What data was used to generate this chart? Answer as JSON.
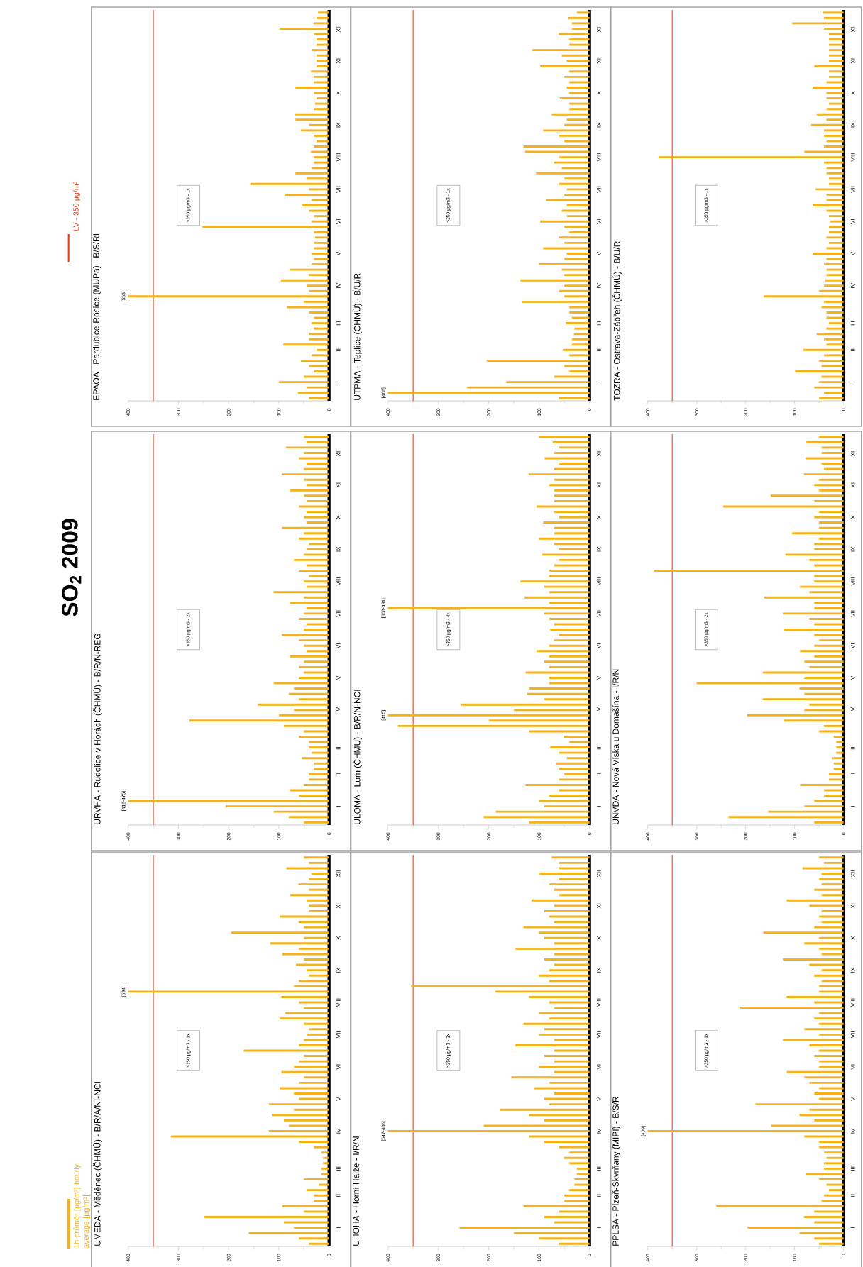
{
  "chart_data": [
    {
      "type": "bar",
      "orientation": "horizontal",
      "title": "UMEDA - Měděnec (ČHMÚ) - B/R/A/NI-NCI",
      "subtitle": "SO$_{2}$   2009",
      "legend": "left",
      "categories": [
        null,
        null,
        null,
        "XII",
        null,
        null,
        null,
        null,
        null,
        "XI",
        null,
        null,
        null,
        null,
        null,
        "X",
        null,
        null,
        null,
        null,
        null,
        "IX",
        null,
        null,
        null,
        null,
        null,
        "VIII",
        null,
        null,
        null,
        null,
        null,
        "VII",
        null,
        null,
        null,
        null,
        null,
        "VI",
        null,
        null,
        null,
        null,
        null,
        "V",
        null,
        null,
        null,
        null,
        null,
        "IV",
        null,
        null,
        null,
        null,
        null,
        null,
        "III",
        null,
        null,
        null,
        null,
        "II",
        null,
        null,
        null,
        null,
        null,
        "I",
        null,
        null,
        null
      ],
      "series": [
        {
          "name": "1h průměr [µg/m³] hourly average [µg/m³]",
          "color": "#f5b21a",
          "values": [
            50,
            40,
            85,
            35,
            40,
            61,
            40,
            77,
            45,
            40,
            40,
            98,
            60,
            50,
            195,
            50,
            117,
            60,
            93,
            50,
            66,
            45,
            40,
            60,
            70,
            400,
            95,
            60,
            50,
            87,
            98,
            50,
            40,
            44,
            50,
            60,
            170,
            50,
            60,
            70,
            95,
            50,
            60,
            98,
            70,
            60,
            120,
            70,
            114,
            90,
            80,
            120,
            315,
            60,
            30,
            15,
            12,
            12,
            15,
            15,
            50,
            20,
            45,
            30,
            30,
            93,
            50,
            248,
            90,
            70,
            160,
            60,
            40
          ]
        }
      ],
      "xlim": [
        400,
        0
      ],
      "xticks": [
        400,
        300,
        200,
        100,
        0
      ],
      "ref_lines": [
        {
          "axis": "x",
          "value": 350,
          "label": "LV - 350 µg/m³",
          "color": "#e8401c"
        }
      ],
      "annotations": [
        ">350 µg/m3 - 1x",
        "[594]"
      ]
    },
    {
      "type": "bar",
      "orientation": "horizontal",
      "title": "URVHA - Rudolice v Horách (ČHMÚ) - B/R/N-REG",
      "categories": [
        null,
        null,
        null,
        "XII",
        null,
        null,
        null,
        null,
        null,
        "XI",
        null,
        null,
        null,
        null,
        null,
        "X",
        null,
        null,
        null,
        null,
        null,
        "IX",
        null,
        null,
        null,
        null,
        null,
        "VIII",
        null,
        null,
        null,
        null,
        null,
        "VII",
        null,
        null,
        null,
        null,
        null,
        "VI",
        null,
        null,
        null,
        null,
        null,
        "V",
        null,
        null,
        null,
        null,
        null,
        "IV",
        null,
        null,
        null,
        null,
        null,
        null,
        "III",
        null,
        null,
        null,
        null,
        "II",
        null,
        null,
        null,
        null,
        null,
        "I",
        null,
        null,
        null
      ],
      "series": [
        {
          "color": "#f5b21a",
          "values": [
            50,
            45,
            86,
            50,
            60,
            45,
            50,
            94,
            50,
            45,
            78,
            50,
            45,
            60,
            45,
            50,
            45,
            94,
            50,
            60,
            40,
            45,
            50,
            70,
            45,
            60,
            40,
            50,
            45,
            110,
            50,
            78,
            45,
            50,
            60,
            45,
            50,
            94,
            60,
            50,
            45,
            78,
            50,
            60,
            50,
            60,
            110,
            70,
            80,
            60,
            142,
            70,
            100,
            278,
            90,
            50,
            60,
            40,
            40,
            35,
            54,
            30,
            30,
            40,
            40,
            50,
            78,
            60,
            400,
            206,
            110,
            80,
            50
          ]
        }
      ],
      "xlim": [
        400,
        0
      ],
      "xticks": [
        400,
        300,
        200,
        100,
        0
      ],
      "ref_lines": [
        {
          "axis": "x",
          "value": 350,
          "color": "#e8401c"
        }
      ],
      "annotations": [
        ">350 µg/m3 - 2x",
        "[418-475]"
      ]
    },
    {
      "type": "bar",
      "orientation": "horizontal",
      "title": "EPAOA - Pardubice-Rosice (MUPa) - B/S/RI",
      "categories": [
        null,
        null,
        null,
        "XII",
        null,
        null,
        null,
        null,
        null,
        "XI",
        null,
        null,
        null,
        null,
        null,
        "X",
        null,
        null,
        null,
        null,
        null,
        "IX",
        null,
        null,
        null,
        null,
        null,
        "VIII",
        null,
        null,
        null,
        null,
        null,
        "VII",
        null,
        null,
        null,
        null,
        null,
        "VI",
        null,
        null,
        null,
        null,
        null,
        "V",
        null,
        null,
        null,
        null,
        null,
        "IV",
        null,
        null,
        null,
        null,
        null,
        null,
        "III",
        null,
        null,
        null,
        null,
        "II",
        null,
        null,
        null,
        null,
        null,
        "I",
        null,
        null,
        null
      ],
      "series": [
        {
          "color": "#f5b21a",
          "values": [
            22,
            25,
            31,
            98,
            30,
            25,
            25,
            34,
            25,
            25,
            25,
            36,
            30,
            30,
            67,
            30,
            25,
            28,
            30,
            68,
            67,
            40,
            56,
            30,
            25,
            30,
            36,
            30,
            30,
            35,
            67,
            45,
            157,
            40,
            87,
            35,
            53,
            40,
            30,
            35,
            252,
            30,
            28,
            30,
            30,
            34,
            30,
            35,
            79,
            40,
            96,
            45,
            40,
            400,
            50,
            84,
            40,
            30,
            35,
            30,
            39,
            40,
            91,
            25,
            35,
            56,
            40,
            30,
            50,
            100,
            45,
            62,
            40
          ]
        }
      ],
      "xlim": [
        400,
        0
      ],
      "xticks": [
        400,
        300,
        200,
        100,
        0
      ],
      "ref_lines": [
        {
          "axis": "x",
          "value": 350,
          "color": "#e8401c"
        }
      ],
      "annotations": [
        ">350 µg/m3 - 1x",
        "[553]"
      ]
    },
    {
      "type": "bar",
      "orientation": "horizontal",
      "title": "UHOHA - Horní Halže - I/R/N",
      "categories": [
        null,
        null,
        null,
        "XII",
        null,
        null,
        null,
        null,
        null,
        "XI",
        null,
        null,
        null,
        null,
        null,
        "X",
        null,
        null,
        null,
        null,
        null,
        "IX",
        null,
        null,
        null,
        null,
        null,
        "VIII",
        null,
        null,
        null,
        null,
        null,
        "VII",
        null,
        null,
        null,
        null,
        null,
        "VI",
        null,
        null,
        null,
        null,
        null,
        "V",
        null,
        null,
        null,
        null,
        null,
        "IV",
        null,
        null,
        null,
        null,
        null,
        null,
        "III",
        null,
        null,
        null,
        null,
        "II",
        null,
        null,
        null,
        null,
        null,
        "I",
        null,
        null,
        null
      ],
      "series": [
        {
          "color": "#f5b21a",
          "values": [
            75,
            60,
            60,
            99,
            60,
            80,
            70,
            60,
            115,
            70,
            90,
            80,
            70,
            131,
            100,
            90,
            70,
            147,
            70,
            90,
            70,
            80,
            100,
            80,
            354,
            187,
            120,
            80,
            70,
            100,
            80,
            131,
            90,
            100,
            70,
            147,
            70,
            90,
            70,
            100,
            70,
            155,
            80,
            110,
            70,
            90,
            80,
            178,
            120,
            90,
            210,
            400,
            120,
            90,
            60,
            40,
            51,
            40,
            25,
            25,
            30,
            30,
            40,
            50,
            50,
            131,
            60,
            90,
            70,
            258,
            150,
            100,
            60
          ]
        }
      ],
      "xlim": [
        400,
        0
      ],
      "xticks": [
        400,
        300,
        200,
        100,
        0
      ],
      "ref_lines": [
        {
          "axis": "x",
          "value": 350,
          "color": "#e8401c"
        }
      ],
      "annotations": [
        ">350 µg/m3 - 3x",
        "[547-486]"
      ]
    },
    {
      "type": "bar",
      "orientation": "horizontal",
      "title": "ULOMA - Lom (ČHMÚ) - B/R/N-NCI",
      "categories": [
        null,
        null,
        null,
        "XII",
        null,
        null,
        null,
        null,
        null,
        "XI",
        null,
        null,
        null,
        null,
        null,
        "X",
        null,
        null,
        null,
        null,
        null,
        "IX",
        null,
        null,
        null,
        null,
        null,
        "VIII",
        null,
        null,
        null,
        null,
        null,
        "VII",
        null,
        null,
        null,
        null,
        null,
        "VI",
        null,
        null,
        null,
        null,
        null,
        "V",
        null,
        null,
        null,
        null,
        null,
        "IV",
        null,
        null,
        null,
        null,
        null,
        null,
        "III",
        null,
        null,
        null,
        null,
        "II",
        null,
        null,
        null,
        null,
        null,
        "I",
        null,
        null,
        null
      ],
      "series": [
        {
          "color": "#f5b21a",
          "values": [
            100,
            73,
            60,
            70,
            89,
            60,
            70,
            121,
            70,
            80,
            70,
            70,
            70,
            105,
            70,
            60,
            92,
            70,
            70,
            100,
            70,
            60,
            94,
            60,
            70,
            80,
            80,
            137,
            90,
            80,
            129,
            80,
            400,
            90,
            80,
            70,
            78,
            60,
            70,
            80,
            105,
            80,
            90,
            80,
            127,
            80,
            80,
            119,
            124,
            90,
            256,
            150,
            400,
            200,
            380,
            120,
            51,
            40,
            78,
            60,
            45,
            67,
            60,
            50,
            60,
            127,
            60,
            80,
            100,
            90,
            186,
            210,
            120
          ]
        }
      ],
      "xlim": [
        400,
        0
      ],
      "xticks": [
        400,
        300,
        200,
        100,
        0
      ],
      "ref_lines": [
        {
          "axis": "x",
          "value": 350,
          "color": "#e8401c"
        }
      ],
      "annotations": [
        ">350 µg/m3 - 4x",
        "[368-491]",
        "[415]"
      ]
    },
    {
      "type": "bar",
      "orientation": "horizontal",
      "title": "UTPMA - Teplice (ČHMÚ) - B/U/R",
      "categories": [
        null,
        null,
        null,
        "XII",
        null,
        null,
        null,
        null,
        null,
        "XI",
        null,
        null,
        null,
        null,
        null,
        "X",
        null,
        null,
        null,
        null,
        null,
        "IX",
        null,
        null,
        null,
        null,
        null,
        "VIII",
        null,
        null,
        null,
        null,
        null,
        "VII",
        null,
        null,
        null,
        null,
        null,
        "VI",
        null,
        null,
        null,
        null,
        null,
        "V",
        null,
        null,
        null,
        null,
        null,
        "IV",
        null,
        null,
        null,
        null,
        null,
        null,
        "III",
        null,
        null,
        null,
        null,
        "II",
        null,
        null,
        null,
        null,
        null,
        "I",
        null,
        null,
        null
      ],
      "series": [
        {
          "color": "#f5b21a",
          "values": [
            25,
            42,
            35,
            35,
            61,
            40,
            40,
            114,
            55,
            45,
            98,
            40,
            50,
            40,
            45,
            40,
            59,
            40,
            40,
            75,
            45,
            50,
            92,
            60,
            50,
            131,
            128,
            60,
            70,
            55,
            106,
            50,
            60,
            45,
            50,
            86,
            45,
            55,
            45,
            98,
            50,
            40,
            60,
            50,
            92,
            45,
            50,
            100,
            55,
            50,
            137,
            50,
            60,
            50,
            134,
            40,
            40,
            35,
            47,
            30,
            31,
            35,
            35,
            53,
            40,
            204,
            50,
            40,
            70,
            165,
            243,
            400,
            60
          ]
        }
      ],
      "xlim": [
        400,
        0
      ],
      "xticks": [
        400,
        300,
        200,
        100,
        0
      ],
      "ref_lines": [
        {
          "axis": "x",
          "value": 350,
          "color": "#e8401c"
        }
      ],
      "annotations": [
        ">350 µg/m3 - 1x",
        "[468]"
      ]
    },
    {
      "type": "bar",
      "orientation": "horizontal",
      "title": "PPLSA - Plzeň-Skvrňany (MIPI) - B/S/R",
      "categories": [
        null,
        null,
        null,
        "XII",
        null,
        null,
        null,
        null,
        null,
        "XI",
        null,
        null,
        null,
        null,
        null,
        "X",
        null,
        null,
        null,
        null,
        null,
        "IX",
        null,
        null,
        null,
        null,
        null,
        "VIII",
        null,
        null,
        null,
        null,
        null,
        "VII",
        null,
        null,
        null,
        null,
        null,
        "VI",
        null,
        null,
        null,
        null,
        null,
        "V",
        null,
        null,
        null,
        null,
        null,
        "IV",
        null,
        null,
        null,
        null,
        null,
        null,
        "III",
        null,
        null,
        null,
        null,
        "II",
        null,
        null,
        null,
        null,
        null,
        "I",
        null,
        null,
        null
      ],
      "series": [
        {
          "color": "#f5b21a",
          "values": [
            50,
            40,
            84,
            45,
            50,
            45,
            60,
            45,
            116,
            70,
            45,
            50,
            45,
            60,
            164,
            50,
            80,
            50,
            45,
            124,
            70,
            45,
            60,
            45,
            50,
            50,
            116,
            60,
            212,
            50,
            60,
            50,
            80,
            50,
            124,
            70,
            50,
            60,
            50,
            50,
            116,
            80,
            70,
            50,
            60,
            50,
            180,
            70,
            90,
            60,
            148,
            400,
            80,
            50,
            50,
            40,
            35,
            40,
            40,
            77,
            50,
            35,
            30,
            40,
            45,
            260,
            60,
            80,
            60,
            196,
            90,
            60,
            50
          ]
        }
      ],
      "xlim": [
        400,
        0
      ],
      "xticks": [
        400,
        300,
        200,
        100,
        0
      ],
      "ref_lines": [
        {
          "axis": "x",
          "value": 350,
          "color": "#e8401c"
        }
      ],
      "annotations": [
        ">350 µg/m3 - 1x",
        "[409]"
      ]
    },
    {
      "type": "bar",
      "orientation": "horizontal",
      "title": "UNVDA - Nová Víska u Domašína - I/R/N",
      "categories": [
        null,
        null,
        null,
        "XII",
        null,
        null,
        null,
        null,
        null,
        "XI",
        null,
        null,
        null,
        null,
        null,
        "X",
        null,
        null,
        null,
        null,
        null,
        "IX",
        null,
        null,
        null,
        null,
        null,
        "VIII",
        null,
        null,
        null,
        null,
        null,
        "VII",
        null,
        null,
        null,
        null,
        null,
        "VI",
        null,
        null,
        null,
        null,
        null,
        "V",
        null,
        null,
        null,
        null,
        null,
        "IV",
        null,
        null,
        null,
        null,
        null,
        null,
        "III",
        null,
        null,
        null,
        null,
        "II",
        null,
        null,
        null,
        null,
        null,
        "I",
        null,
        null,
        null
      ],
      "series": [
        {
          "color": "#f5b21a",
          "values": [
            50,
            76,
            45,
            45,
            78,
            45,
            40,
            81,
            50,
            60,
            50,
            149,
            60,
            246,
            50,
            60,
            50,
            50,
            105,
            50,
            60,
            60,
            119,
            70,
            60,
            387,
            60,
            60,
            89,
            70,
            162,
            60,
            60,
            124,
            70,
            60,
            122,
            60,
            50,
            60,
            89,
            60,
            80,
            70,
            165,
            80,
            300,
            90,
            80,
            165,
            70,
            80,
            197,
            122,
            40,
            50,
            20,
            15,
            15,
            15,
            24,
            20,
            20,
            30,
            30,
            89,
            40,
            40,
            60,
            80,
            154,
            235,
            60
          ]
        }
      ],
      "xlim": [
        400,
        0
      ],
      "xticks": [
        400,
        300,
        200,
        100,
        0
      ],
      "ref_lines": [
        {
          "axis": "x",
          "value": 350,
          "color": "#e8401c"
        }
      ],
      "annotations": [
        ">350 µg/m3 - 2x"
      ]
    },
    {
      "type": "bar",
      "orientation": "horizontal",
      "title": "TOZRA - Ostrava-Zábřeh (ČHMÚ) - B/U/R",
      "categories": [
        null,
        null,
        null,
        "XII",
        null,
        null,
        null,
        null,
        null,
        "XI",
        null,
        null,
        null,
        null,
        null,
        "X",
        null,
        null,
        null,
        null,
        null,
        "IX",
        null,
        null,
        null,
        null,
        null,
        "VIII",
        null,
        null,
        null,
        null,
        null,
        "VII",
        null,
        null,
        null,
        null,
        null,
        "VI",
        null,
        null,
        null,
        null,
        null,
        "V",
        null,
        null,
        null,
        null,
        null,
        "IV",
        null,
        null,
        null,
        null,
        null,
        null,
        "III",
        null,
        null,
        null,
        null,
        "II",
        null,
        null,
        null,
        null,
        null,
        "I",
        null,
        null,
        null
      ],
      "series": [
        {
          "color": "#f5b21a",
          "values": [
            43,
            40,
            105,
            40,
            30,
            30,
            30,
            30,
            30,
            30,
            60,
            30,
            30,
            35,
            63,
            35,
            35,
            30,
            35,
            55,
            35,
            66,
            40,
            40,
            35,
            40,
            80,
            378,
            40,
            35,
            35,
            30,
            30,
            57,
            35,
            35,
            63,
            35,
            30,
            27,
            30,
            30,
            35,
            30,
            35,
            63,
            35,
            40,
            35,
            35,
            38,
            40,
            50,
            163,
            40,
            45,
            35,
            35,
            30,
            35,
            55,
            40,
            35,
            82,
            40,
            50,
            45,
            99,
            45,
            50,
            60,
            40,
            50
          ]
        }
      ],
      "xlim": [
        400,
        0
      ],
      "xticks": [
        400,
        300,
        200,
        100,
        0
      ],
      "ref_lines": [
        {
          "axis": "x",
          "value": 350,
          "color": "#e8401c"
        }
      ],
      "annotations": [
        ">350 µg/m3 - 1x"
      ]
    }
  ]
}
